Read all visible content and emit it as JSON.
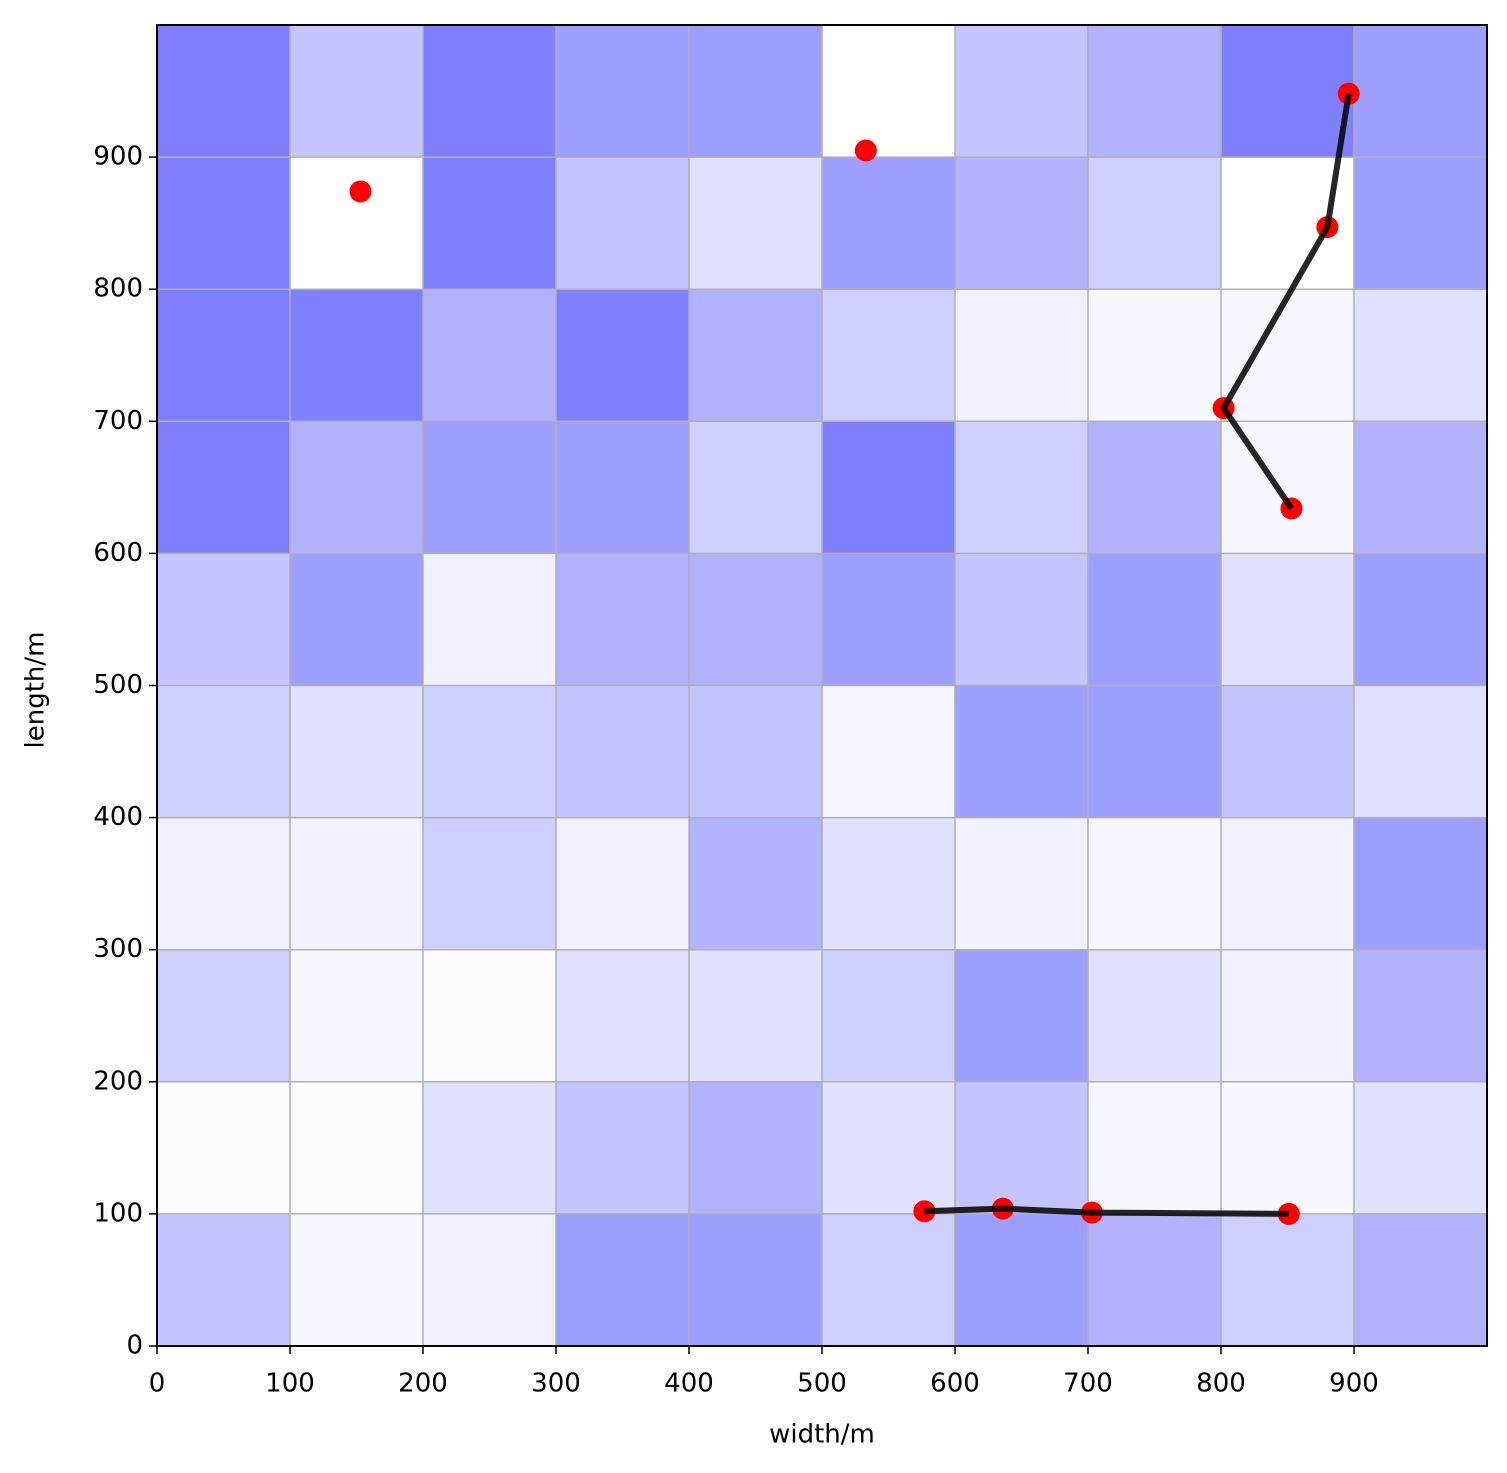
{
  "chart_data": {
    "type": "heatmap",
    "xlabel": "width/m",
    "ylabel": "length/m",
    "xlim": [
      0,
      1000
    ],
    "ylim": [
      0,
      1000
    ],
    "xticks": [
      0,
      100,
      200,
      300,
      400,
      500,
      600,
      700,
      800,
      900
    ],
    "yticks": [
      0,
      100,
      200,
      300,
      400,
      500,
      600,
      700,
      800,
      900
    ],
    "grid": true,
    "cell_color": "#0000ff",
    "z": [
      [
        0.23,
        0.03,
        0.06,
        0.38,
        0.38,
        0.19,
        0.38,
        0.3,
        0.19,
        0.3
      ],
      [
        0.01,
        0.01,
        0.12,
        0.23,
        0.3,
        0.12,
        0.23,
        0.03,
        0.03,
        0.12
      ],
      [
        0.19,
        0.03,
        0.01,
        0.12,
        0.12,
        0.19,
        0.38,
        0.12,
        0.06,
        0.3
      ],
      [
        0.06,
        0.05,
        0.19,
        0.06,
        0.3,
        0.12,
        0.05,
        0.03,
        0.06,
        0.38
      ],
      [
        0.19,
        0.12,
        0.19,
        0.23,
        0.23,
        0.03,
        0.38,
        0.38,
        0.23,
        0.12
      ],
      [
        0.23,
        0.38,
        0.06,
        0.3,
        0.3,
        0.38,
        0.23,
        0.38,
        0.12,
        0.38
      ],
      [
        0.5,
        0.3,
        0.38,
        0.38,
        0.19,
        0.5,
        0.19,
        0.3,
        0.03,
        0.3
      ],
      [
        0.5,
        0.5,
        0.3,
        0.5,
        0.3,
        0.19,
        0.06,
        0.03,
        0.03,
        0.12
      ],
      [
        0.5,
        0,
        0.5,
        0.23,
        0.12,
        0.38,
        0.3,
        0.19,
        0,
        0.38
      ],
      [
        0.5,
        0.23,
        0.5,
        0.38,
        0.38,
        0,
        0.23,
        0.3,
        0.5,
        0.38
      ]
    ],
    "paths": [
      {
        "color": "#000000",
        "x": [
          896,
          880,
          802,
          853
        ],
        "y": [
          948,
          847,
          710,
          634
        ]
      },
      {
        "color": "#000000",
        "x": [
          577,
          636,
          703,
          851
        ],
        "y": [
          102,
          104,
          101,
          100
        ]
      }
    ],
    "points": {
      "color": "#ff0000",
      "x": [
        153,
        533,
        896,
        880,
        802,
        853,
        577,
        636,
        703,
        851
      ],
      "y": [
        874,
        905,
        948,
        847,
        710,
        634,
        102,
        104,
        101,
        100
      ]
    }
  }
}
